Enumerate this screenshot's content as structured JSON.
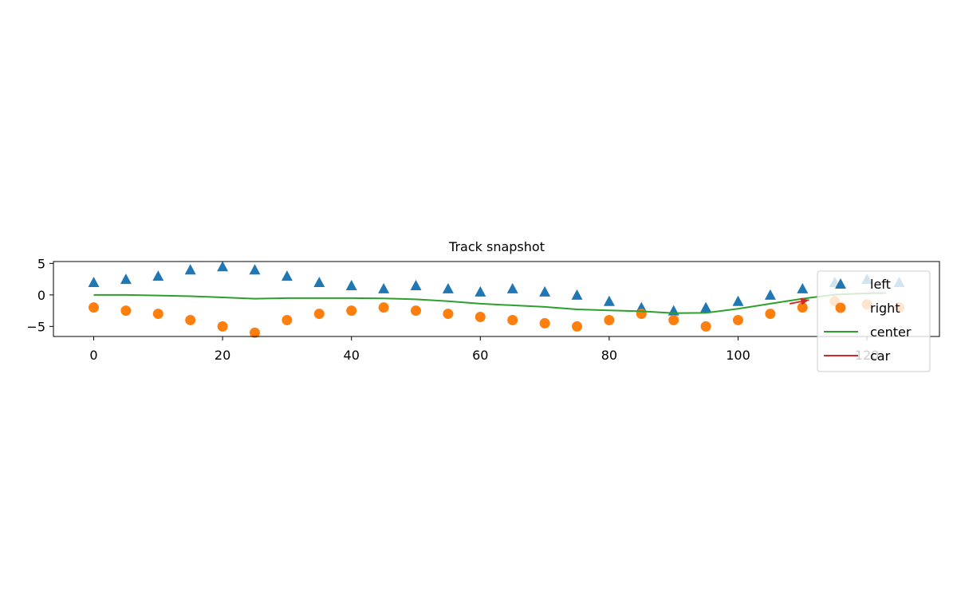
{
  "chart_data": {
    "type": "scatter",
    "title": "Track snapshot",
    "xlabel": "",
    "ylabel": "",
    "xlim": [
      -6.25,
      131.25
    ],
    "ylim": [
      -6.6,
      5.3
    ],
    "xticks": [
      0,
      20,
      40,
      60,
      80,
      100,
      120
    ],
    "yticks": [
      -5,
      0,
      5
    ],
    "xtick_labels": [
      "0",
      "20",
      "40",
      "60",
      "80",
      "100",
      "120"
    ],
    "ytick_labels": [
      "−5",
      "0",
      "5"
    ],
    "grid": false,
    "legend_position": "right",
    "colors": {
      "left": "#1f77b4",
      "right": "#ff7f0e",
      "center": "#2ca02c",
      "car": "#d62728"
    },
    "series": [
      {
        "name": "left",
        "kind": "scatter",
        "marker": "triangle",
        "x": [
          0,
          5,
          10,
          15,
          20,
          25,
          30,
          35,
          40,
          45,
          50,
          55,
          60,
          65,
          70,
          75,
          80,
          85,
          90,
          95,
          100,
          105,
          110,
          115,
          120,
          125
        ],
        "y": [
          2,
          2.5,
          3,
          4,
          4.5,
          4,
          3,
          2,
          1.5,
          1,
          1.5,
          1,
          0.5,
          1,
          0.5,
          0,
          -1,
          -2,
          -2.5,
          -2,
          -1,
          0,
          1,
          2,
          2.5,
          2
        ]
      },
      {
        "name": "right",
        "kind": "scatter",
        "marker": "circle",
        "x": [
          0,
          5,
          10,
          15,
          20,
          25,
          30,
          35,
          40,
          45,
          50,
          55,
          60,
          65,
          70,
          75,
          80,
          85,
          90,
          95,
          100,
          105,
          110,
          115,
          120,
          125
        ],
        "y": [
          -2,
          -2.5,
          -3,
          -4,
          -5,
          -6,
          -4,
          -3,
          -2.5,
          -2,
          -2.5,
          -3,
          -3.5,
          -4,
          -4.5,
          -5,
          -4,
          -3,
          -4,
          -5,
          -4,
          -3,
          -2,
          -1,
          -1.5,
          -2
        ]
      },
      {
        "name": "center",
        "kind": "line",
        "x": [
          0,
          5,
          10,
          15,
          20,
          25,
          30,
          35,
          40,
          45,
          50,
          55,
          60,
          65,
          70,
          75,
          80,
          85,
          90,
          95,
          100,
          105,
          110,
          115,
          120,
          123
        ],
        "y": [
          0,
          0,
          -0.1,
          -0.2,
          -0.4,
          -0.6,
          -0.5,
          -0.5,
          -0.5,
          -0.55,
          -0.7,
          -1.0,
          -1.4,
          -1.65,
          -1.9,
          -2.3,
          -2.45,
          -2.6,
          -2.9,
          -2.85,
          -2.2,
          -1.4,
          -0.6,
          0.05,
          0.25,
          0.3
        ]
      },
      {
        "name": "car",
        "kind": "arrow",
        "x": [
          108,
          111
        ],
        "y": [
          -1.4,
          -0.8
        ]
      }
    ]
  }
}
